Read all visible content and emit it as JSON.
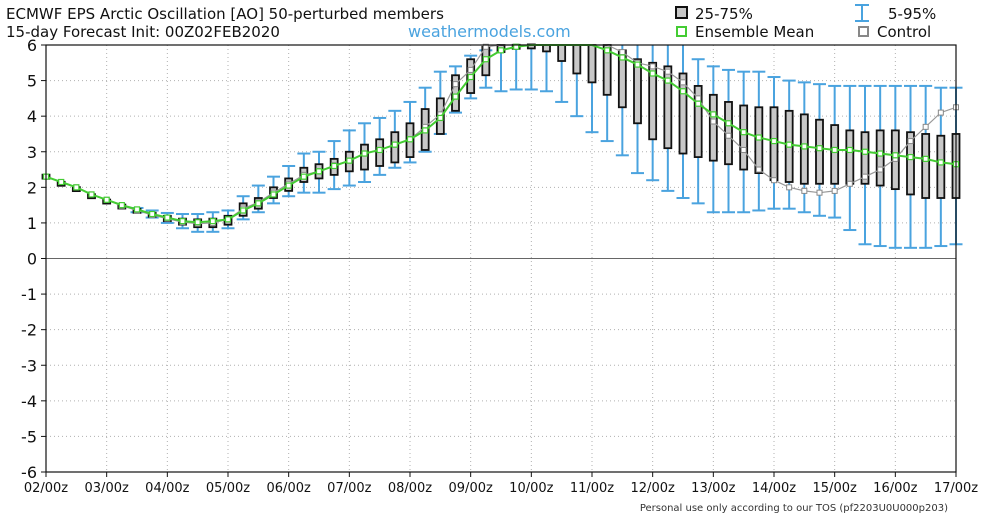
{
  "header": {
    "title_line1": "ECMWF EPS Arctic Oscillation [AO]  50-perturbed members",
    "title_line2": "15-day Forecast Init: 00Z02FEB2020",
    "website": "weathermodels.com",
    "footer": "Personal use only according to our TOS (pf2203U0U000p203)"
  },
  "legend": {
    "items": [
      {
        "key": "box",
        "label": "25-75%"
      },
      {
        "key": "whisker",
        "label": "5-95%"
      },
      {
        "key": "mean",
        "label": "Ensemble Mean"
      },
      {
        "key": "control",
        "label": "Control"
      }
    ]
  },
  "colors": {
    "box_fill": "#c8c8c8",
    "box_edge": "#111111",
    "whisker": "#4aa3df",
    "mean_line": "#44cc33",
    "control_line": "#999999",
    "grid": "#b0b0b0",
    "zero_line": "#666666"
  },
  "chart_data": {
    "type": "box",
    "title": "ECMWF EPS Arctic Oscillation [AO]  50-perturbed members",
    "ylim": [
      -6,
      6
    ],
    "yticks": [
      6,
      5,
      4,
      3,
      2,
      1,
      0,
      -1,
      -2,
      -3,
      -4,
      -5,
      -6
    ],
    "xlim": [
      0,
      15
    ],
    "xtick_labels": [
      "02/00z",
      "03/00z",
      "04/00z",
      "05/00z",
      "06/00z",
      "07/00z",
      "08/00z",
      "09/00z",
      "10/00z",
      "11/00z",
      "12/00z",
      "13/00z",
      "14/00z",
      "15/00z",
      "16/00z",
      "17/00z"
    ],
    "grid": true,
    "legend_position": "top-right",
    "t": [
      0,
      0.25,
      0.5,
      0.75,
      1,
      1.25,
      1.5,
      1.75,
      2,
      2.25,
      2.5,
      2.75,
      3,
      3.25,
      3.5,
      3.75,
      4,
      4.25,
      4.5,
      4.75,
      5,
      5.25,
      5.5,
      5.75,
      6,
      6.25,
      6.5,
      6.75,
      7,
      7.25,
      7.5,
      7.75,
      8,
      8.25,
      8.5,
      8.75,
      9,
      9.25,
      9.5,
      9.75,
      10,
      10.25,
      10.5,
      10.75,
      11,
      11.25,
      11.5,
      11.75,
      12,
      12.25,
      12.5,
      12.75,
      13,
      13.25,
      13.5,
      13.75,
      14,
      14.25,
      14.5,
      14.75,
      15
    ],
    "p05": [
      2.3,
      2.1,
      1.95,
      1.75,
      1.6,
      1.45,
      1.3,
      1.15,
      1.0,
      0.85,
      0.75,
      0.75,
      0.85,
      1.1,
      1.3,
      1.55,
      1.75,
      1.85,
      1.85,
      1.95,
      2.05,
      2.15,
      2.35,
      2.55,
      2.7,
      3.0,
      3.5,
      4.1,
      4.5,
      4.8,
      4.7,
      4.75,
      4.75,
      4.7,
      4.4,
      4.0,
      3.55,
      3.3,
      2.9,
      2.4,
      2.2,
      1.9,
      1.7,
      1.55,
      1.3,
      1.3,
      1.3,
      1.35,
      1.4,
      1.4,
      1.3,
      1.2,
      1.15,
      0.8,
      0.4,
      0.35,
      0.3,
      0.3,
      0.3,
      0.35,
      0.4
    ],
    "p25": [
      2.3,
      2.1,
      1.95,
      1.75,
      1.6,
      1.42,
      1.3,
      1.18,
      1.05,
      0.95,
      0.88,
      0.88,
      0.95,
      1.2,
      1.4,
      1.7,
      1.9,
      2.15,
      2.25,
      2.35,
      2.45,
      2.5,
      2.6,
      2.7,
      2.85,
      3.05,
      3.5,
      4.15,
      4.65,
      5.15,
      5.8,
      5.9,
      5.92,
      5.82,
      5.55,
      5.2,
      4.95,
      4.6,
      4.25,
      3.8,
      3.35,
      3.1,
      2.95,
      2.85,
      2.75,
      2.65,
      2.5,
      2.4,
      2.2,
      2.15,
      2.1,
      2.1,
      2.1,
      2.1,
      2.1,
      2.05,
      1.95,
      1.8,
      1.7,
      1.7,
      1.7
    ],
    "p75": [
      2.3,
      2.1,
      1.95,
      1.75,
      1.6,
      1.5,
      1.38,
      1.28,
      1.2,
      1.12,
      1.1,
      1.12,
      1.2,
      1.55,
      1.7,
      2.0,
      2.25,
      2.55,
      2.65,
      2.8,
      3.0,
      3.2,
      3.35,
      3.55,
      3.8,
      4.2,
      4.5,
      5.15,
      5.6,
      5.95,
      6.0,
      6.0,
      6.0,
      6.0,
      6.0,
      6.0,
      6.0,
      6.0,
      5.85,
      5.6,
      5.5,
      5.4,
      5.2,
      4.85,
      4.6,
      4.4,
      4.3,
      4.25,
      4.25,
      4.15,
      4.05,
      3.9,
      3.75,
      3.6,
      3.55,
      3.6,
      3.6,
      3.55,
      3.5,
      3.45,
      3.5
    ],
    "p95": [
      2.3,
      2.1,
      1.95,
      1.75,
      1.6,
      1.5,
      1.42,
      1.35,
      1.28,
      1.25,
      1.25,
      1.3,
      1.35,
      1.75,
      2.05,
      2.3,
      2.6,
      2.95,
      3.0,
      3.3,
      3.6,
      3.8,
      3.95,
      4.15,
      4.4,
      4.8,
      5.25,
      5.4,
      5.7,
      5.85,
      6.0,
      6.0,
      6.0,
      6.0,
      6.0,
      6.0,
      6.0,
      6.0,
      6.0,
      6.0,
      6.0,
      6.0,
      6.0,
      5.6,
      5.4,
      5.3,
      5.25,
      5.25,
      5.1,
      5.0,
      4.95,
      4.9,
      4.85,
      4.85,
      4.85,
      4.85,
      4.85,
      4.85,
      4.85,
      4.8,
      4.8
    ],
    "mean": [
      2.3,
      2.15,
      2.0,
      1.8,
      1.65,
      1.5,
      1.38,
      1.25,
      1.15,
      1.05,
      1.02,
      1.05,
      1.1,
      1.35,
      1.55,
      1.8,
      2.05,
      2.3,
      2.45,
      2.6,
      2.75,
      2.95,
      3.05,
      3.2,
      3.35,
      3.6,
      3.95,
      4.55,
      5.1,
      5.6,
      5.85,
      5.95,
      6.0,
      6.0,
      6.0,
      6.0,
      6.0,
      5.85,
      5.65,
      5.45,
      5.2,
      5.0,
      4.7,
      4.35,
      4.05,
      3.8,
      3.55,
      3.4,
      3.3,
      3.2,
      3.15,
      3.1,
      3.05,
      3.05,
      3.0,
      2.95,
      2.9,
      2.85,
      2.8,
      2.7,
      2.65
    ],
    "control": [
      2.3,
      2.15,
      2.0,
      1.8,
      1.65,
      1.48,
      1.35,
      1.22,
      1.12,
      1.02,
      0.98,
      1.0,
      1.1,
      1.4,
      1.58,
      1.85,
      2.1,
      2.35,
      2.45,
      2.62,
      2.75,
      2.95,
      3.05,
      3.2,
      3.35,
      3.7,
      4.05,
      4.9,
      5.3,
      5.95,
      6.0,
      6.0,
      6.0,
      6.0,
      6.0,
      6.0,
      6.0,
      6.0,
      5.8,
      5.5,
      5.4,
      5.25,
      4.95,
      4.5,
      3.85,
      3.45,
      3.05,
      2.5,
      2.2,
      2.0,
      1.9,
      1.85,
      1.9,
      2.1,
      2.3,
      2.5,
      2.8,
      3.3,
      3.7,
      4.1,
      4.25
    ]
  }
}
